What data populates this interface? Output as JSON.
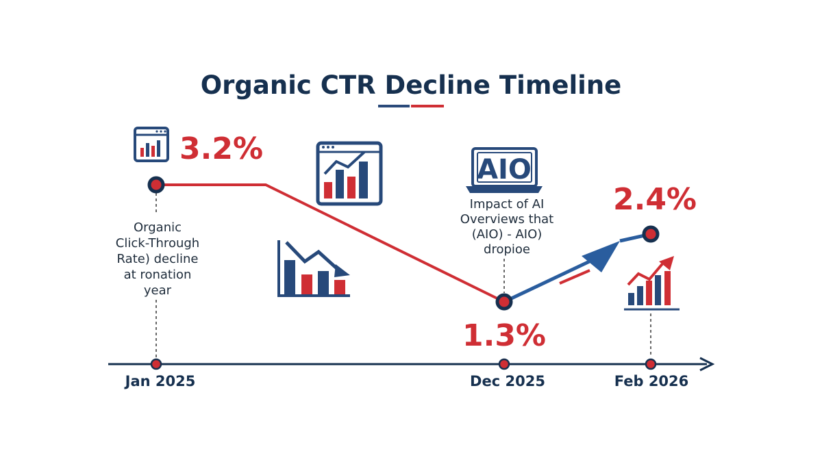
{
  "chart_data": {
    "type": "line",
    "title": "Organic CTR Decline Timeline",
    "x": [
      "Jan 2025",
      "Dec 2025",
      "Feb 2026"
    ],
    "series": [
      {
        "values": [
          3.2,
          1.3,
          2.4
        ]
      }
    ],
    "data_labels": [
      "3.2%",
      "1.3%",
      "2.4%"
    ],
    "annotations": [
      "Organic\nClick-Through\nRate) decline\nat ronation\nyear",
      "Impact of AI\nOverviews that\n(AIO) - AIO)\ndropioe"
    ],
    "logo_text": "AIO",
    "grid": false,
    "legend": "none"
  },
  "colors": {
    "navy": "#16304f",
    "red": "#cf2e34",
    "blue": "#2a5d9e"
  },
  "icons": [
    "bar-chart-window-icon",
    "growth-chart-window-icon",
    "declining-bar-chart-icon",
    "aio-laptop-icon",
    "rising-bar-chart-icon"
  ]
}
